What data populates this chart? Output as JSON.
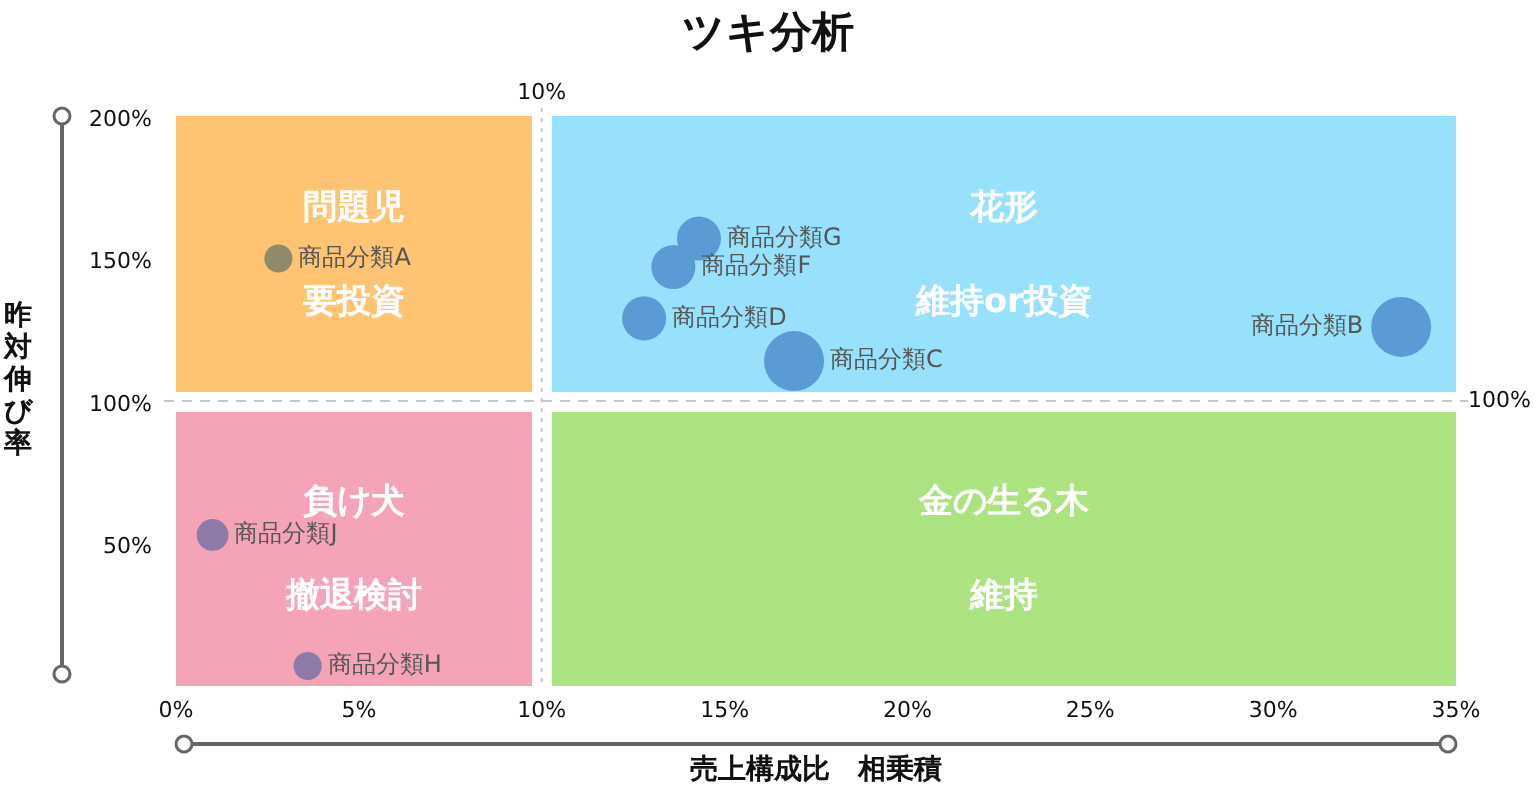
{
  "chart_data": {
    "type": "bubble",
    "title": "ツキ分析",
    "xlabel": "売上構成比　相乗積",
    "ylabel": "昨対伸び率",
    "xlim": [
      0,
      35
    ],
    "ylim": [
      0,
      200
    ],
    "xticks": [
      {
        "value": 0,
        "label": "0%"
      },
      {
        "value": 5,
        "label": "5%"
      },
      {
        "value": 10,
        "label": "10%"
      },
      {
        "value": 15,
        "label": "15%"
      },
      {
        "value": 20,
        "label": "20%"
      },
      {
        "value": 25,
        "label": "25%"
      },
      {
        "value": 30,
        "label": "30%"
      },
      {
        "value": 35,
        "label": "35%"
      }
    ],
    "yticks": [
      {
        "value": 50,
        "label": "50%"
      },
      {
        "value": 100,
        "label": "100%"
      },
      {
        "value": 150,
        "label": "150%"
      },
      {
        "value": 200,
        "label": "200%"
      }
    ],
    "ref_lines": [
      {
        "axis": "x",
        "value": 10,
        "label": "10%",
        "line_style": "dotted"
      },
      {
        "axis": "y",
        "value": 100,
        "label": "100%",
        "line_style": "dashed"
      }
    ],
    "annotations": [
      "問題児",
      "要投資",
      "花形",
      "維持or投資",
      "負け犬",
      "撤退検討",
      "金の生る木",
      "維持"
    ],
    "series": [
      {
        "name": "商品分類A",
        "color": "#8f8a6a",
        "x": [
          2.8
        ],
        "values": [
          150
        ],
        "sizes": [
          0.22
        ]
      },
      {
        "name": "商品分類G",
        "color": "#5b9bd5",
        "x": [
          14.3
        ],
        "values": [
          157
        ],
        "sizes": [
          0.54
        ]
      },
      {
        "name": "商品分類F",
        "color": "#5b9bd5",
        "x": [
          13.6
        ],
        "values": [
          147
        ],
        "sizes": [
          0.54
        ]
      },
      {
        "name": "商品分類D",
        "color": "#5b9bd5",
        "x": [
          12.8
        ],
        "values": [
          129
        ],
        "sizes": [
          0.54
        ]
      },
      {
        "name": "商品分類C",
        "color": "#5b9bd5",
        "x": [
          16.9
        ],
        "values": [
          114
        ],
        "sizes": [
          1
        ]
      },
      {
        "name": "商品分類B",
        "color": "#5b9bd5",
        "x": [
          33.5
        ],
        "values": [
          126
        ],
        "sizes": [
          1
        ]
      },
      {
        "name": "商品分類J",
        "color": "#8e7aa8",
        "x": [
          1.0
        ],
        "values": [
          53
        ],
        "sizes": [
          0.28
        ]
      },
      {
        "name": "商品分類H",
        "color": "#8e7aa8",
        "x": [
          3.6
        ],
        "values": [
          7
        ],
        "sizes": [
          0.22
        ]
      }
    ]
  }
}
